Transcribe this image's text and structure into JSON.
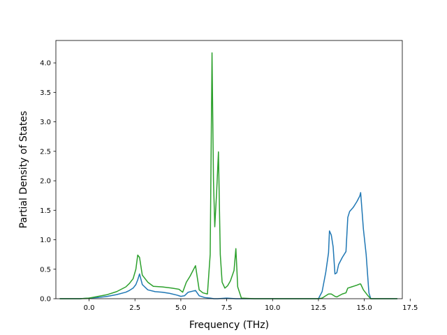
{
  "chart_data": {
    "type": "line",
    "title": "",
    "xlabel": "Frequency (THz)",
    "ylabel": "Partial Density of States",
    "xlim": [
      -1.81,
      17.07
    ],
    "ylim": [
      0.0,
      4.38
    ],
    "xticks": [
      0.0,
      2.5,
      5.0,
      7.5,
      10.0,
      12.5,
      15.0,
      17.5
    ],
    "xtick_labels": [
      "0.0",
      "2.5",
      "5.0",
      "7.5",
      "10.0",
      "12.5",
      "15.0",
      "17.5"
    ],
    "yticks": [
      0.0,
      0.5,
      1.0,
      1.5,
      2.0,
      2.5,
      3.0,
      3.5,
      4.0
    ],
    "ytick_labels": [
      "0.0",
      "0.5",
      "1.0",
      "1.5",
      "2.0",
      "2.5",
      "3.0",
      "3.5",
      "4.0"
    ],
    "grid": false,
    "legend": false,
    "series": [
      {
        "color": "#1f77b4",
        "x": [
          -1.6,
          -0.5,
          0.0,
          0.5,
          1.0,
          1.5,
          2.0,
          2.2,
          2.4,
          2.55,
          2.65,
          2.75,
          2.9,
          3.2,
          3.6,
          4.0,
          4.4,
          4.8,
          5.0,
          5.2,
          5.4,
          5.8,
          6.0,
          6.3,
          6.6,
          6.8,
          7.0,
          7.5,
          8.0,
          9.0,
          10.0,
          11.0,
          12.0,
          12.5,
          12.7,
          12.9,
          13.05,
          13.1,
          13.2,
          13.3,
          13.4,
          13.5,
          13.6,
          13.8,
          14.0,
          14.1,
          14.2,
          14.4,
          14.6,
          14.75,
          14.8,
          14.95,
          15.1,
          15.25,
          15.35,
          16.0,
          16.8
        ],
        "y": [
          0.0,
          0.0,
          0.01,
          0.02,
          0.04,
          0.07,
          0.11,
          0.14,
          0.18,
          0.24,
          0.32,
          0.42,
          0.24,
          0.15,
          0.12,
          0.11,
          0.09,
          0.06,
          0.04,
          0.05,
          0.11,
          0.14,
          0.05,
          0.02,
          0.01,
          0.0,
          0.0,
          0.01,
          0.0,
          0.0,
          0.0,
          0.0,
          0.0,
          0.0,
          0.12,
          0.45,
          0.78,
          1.15,
          1.08,
          0.88,
          0.42,
          0.44,
          0.58,
          0.7,
          0.8,
          1.38,
          1.48,
          1.55,
          1.65,
          1.74,
          1.8,
          1.18,
          0.75,
          0.1,
          0.0,
          0.0,
          0.0
        ]
      },
      {
        "color": "#2ca02c",
        "x": [
          -1.6,
          -0.5,
          0.0,
          0.5,
          1.0,
          1.5,
          2.0,
          2.2,
          2.4,
          2.55,
          2.65,
          2.75,
          2.9,
          3.2,
          3.5,
          4.0,
          4.5,
          4.9,
          5.1,
          5.3,
          5.5,
          5.8,
          6.0,
          6.2,
          6.45,
          6.6,
          6.7,
          6.78,
          6.85,
          6.95,
          7.05,
          7.15,
          7.25,
          7.4,
          7.55,
          7.7,
          7.9,
          8.0,
          8.1,
          8.3,
          9.0,
          10.0,
          11.0,
          12.0,
          12.5,
          12.7,
          12.9,
          13.05,
          13.2,
          13.4,
          13.5,
          13.8,
          14.0,
          14.1,
          14.3,
          14.6,
          14.75,
          14.8,
          14.95,
          15.2,
          15.35,
          16.0,
          16.8
        ],
        "y": [
          0.0,
          0.0,
          0.01,
          0.04,
          0.07,
          0.12,
          0.2,
          0.26,
          0.34,
          0.5,
          0.74,
          0.7,
          0.4,
          0.28,
          0.21,
          0.2,
          0.18,
          0.16,
          0.11,
          0.28,
          0.38,
          0.56,
          0.15,
          0.1,
          0.08,
          0.75,
          4.17,
          2.0,
          1.22,
          1.8,
          2.49,
          0.75,
          0.28,
          0.18,
          0.22,
          0.3,
          0.48,
          0.85,
          0.2,
          0.01,
          0.0,
          0.0,
          0.0,
          0.0,
          0.0,
          0.01,
          0.05,
          0.08,
          0.08,
          0.04,
          0.03,
          0.08,
          0.1,
          0.18,
          0.2,
          0.23,
          0.25,
          0.25,
          0.15,
          0.05,
          0.0,
          0.0,
          0.0
        ]
      }
    ]
  }
}
